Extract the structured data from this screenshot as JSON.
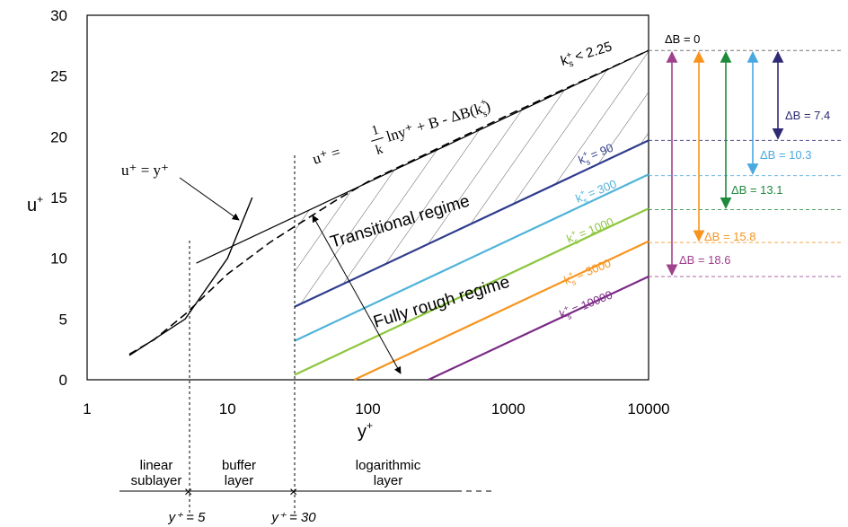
{
  "chart_data": {
    "type": "line",
    "x_scale": "log",
    "xlim": [
      1,
      10000
    ],
    "ylim": [
      0,
      30
    ],
    "grid": false,
    "xlabel": "y⁺",
    "ylabel": "u⁺",
    "x_ticks": [
      1,
      10,
      100,
      1000,
      10000
    ],
    "x_tick_labels": [
      "1",
      "10",
      "100",
      "1000",
      "10000"
    ],
    "y_ticks": [
      0,
      5,
      10,
      15,
      20,
      25,
      30
    ],
    "y_tick_labels": [
      "0",
      "5",
      "10",
      "15",
      "20",
      "25",
      "30"
    ],
    "smooth_wall": [
      {
        "name": "linear",
        "equation": "u⁺ = y⁺",
        "x": [
          2,
          5,
          10,
          15
        ],
        "y": [
          2,
          5,
          10,
          15
        ]
      },
      {
        "name": "log-law",
        "equation_parts": [
          "u⁺ = ",
          "1",
          "k",
          "lny⁺ + B - ΔB(k",
          "+",
          "s",
          ")"
        ],
        "x": [
          6,
          10000
        ],
        "y": [
          9.6,
          27.1
        ]
      },
      {
        "name": "profile (dashed)",
        "x": [
          2,
          3,
          5,
          10,
          20,
          30,
          60,
          100,
          1000,
          10000
        ],
        "y": [
          2.1,
          3.3,
          5.4,
          8.7,
          11.3,
          12.6,
          14.8,
          16.3,
          21.8,
          27.1
        ]
      }
    ],
    "series": [
      {
        "name": "k⁺s = 90",
        "label_parts": [
          "k",
          "+",
          "s",
          " = 90"
        ],
        "color": "#2e3b8c",
        "x": [
          30,
          10000
        ],
        "y": [
          6.0,
          19.7
        ]
      },
      {
        "name": "k⁺s = 300",
        "label_parts": [
          "k",
          "+",
          "s",
          " = 300"
        ],
        "color": "#4fb3d9",
        "x": [
          30,
          10000
        ],
        "y": [
          3.2,
          16.9
        ]
      },
      {
        "name": "k⁺s = 1000",
        "label_parts": [
          "k",
          "+",
          "s",
          " = 1000"
        ],
        "color": "#8dc63f",
        "x": [
          30,
          10000
        ],
        "y": [
          0.4,
          14.1
        ]
      },
      {
        "name": "k⁺s = 3000",
        "label_parts": [
          "k",
          "+",
          "s",
          " = 3000"
        ],
        "color": "#f7941d",
        "x": [
          80,
          10000
        ],
        "y": [
          0.0,
          11.4
        ]
      },
      {
        "name": "k⁺s = 10000",
        "label_parts": [
          "k",
          "+",
          "s",
          " = 10000"
        ],
        "color": "#7b2a86",
        "x": [
          270,
          10000
        ],
        "y": [
          0.0,
          8.5
        ]
      }
    ],
    "annotations": {
      "smooth_limit": [
        "k",
        "+",
        "s",
        " < 2.25"
      ],
      "transitional": "Transitional regime",
      "fully_rough": "Fully rough regime",
      "y5": "y⁺ = 5",
      "y30": "y⁺ = 30",
      "layers": [
        {
          "line1": "linear",
          "line2": "sublayer"
        },
        {
          "line1": "buffer",
          "line2": "layer"
        },
        {
          "line1": "logarithmic",
          "line2": "layer"
        }
      ]
    },
    "delta_b": [
      {
        "label": "ΔB = 0",
        "value": 0,
        "color": "#000000"
      },
      {
        "label": "ΔB = 7.4",
        "value": 7.4,
        "color": "#2e2a73"
      },
      {
        "label": "ΔB = 10.3",
        "value": 10.3,
        "color": "#4aa8e0"
      },
      {
        "label": "ΔB = 13.1",
        "value": 13.1,
        "color": "#1f8a3c"
      },
      {
        "label": "ΔB = 15.8",
        "value": 15.8,
        "color": "#f7941d"
      },
      {
        "label": "ΔB = 18.6",
        "value": 18.6,
        "color": "#a0418e"
      }
    ]
  }
}
